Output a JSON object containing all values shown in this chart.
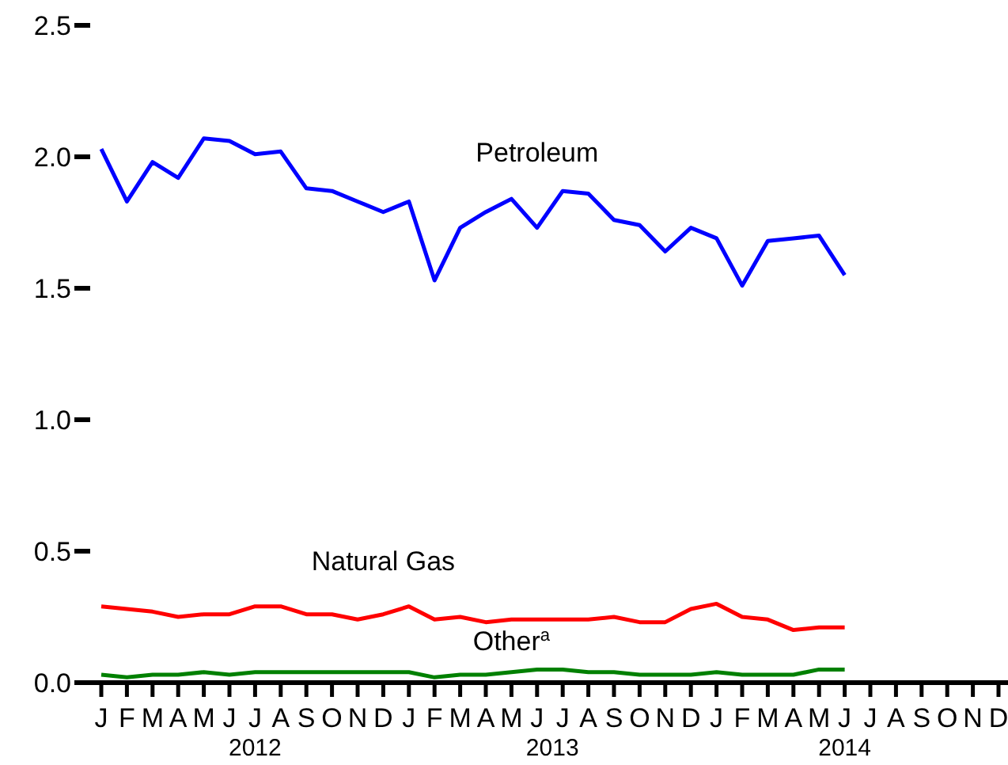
{
  "chart_data": {
    "type": "line",
    "categories": [
      "J",
      "F",
      "M",
      "A",
      "M",
      "J",
      "J",
      "A",
      "S",
      "O",
      "N",
      "D",
      "J",
      "F",
      "M",
      "A",
      "M",
      "J",
      "J",
      "A",
      "S",
      "O",
      "N",
      "D",
      "J",
      "F",
      "M",
      "A",
      "M",
      "J",
      "J",
      "A",
      "S",
      "O",
      "N",
      "D"
    ],
    "series": [
      {
        "name": "Petroleum",
        "color": "#0000ff",
        "values": [
          2.03,
          1.83,
          1.98,
          1.92,
          2.07,
          2.06,
          2.01,
          2.02,
          1.88,
          1.87,
          1.83,
          1.79,
          1.83,
          1.53,
          1.73,
          1.79,
          1.84,
          1.73,
          1.87,
          1.86,
          1.76,
          1.74,
          1.64,
          1.73,
          1.69,
          1.51,
          1.68,
          1.69,
          1.7,
          1.55,
          null,
          null,
          null,
          null,
          null,
          null
        ]
      },
      {
        "name": "Natural Gas",
        "color": "#ff0000",
        "values": [
          0.29,
          0.28,
          0.27,
          0.25,
          0.26,
          0.26,
          0.29,
          0.29,
          0.26,
          0.26,
          0.24,
          0.26,
          0.29,
          0.24,
          0.25,
          0.23,
          0.24,
          0.24,
          0.24,
          0.24,
          0.25,
          0.23,
          0.23,
          0.28,
          0.3,
          0.25,
          0.24,
          0.2,
          0.21,
          0.21,
          null,
          null,
          null,
          null,
          null,
          null
        ]
      },
      {
        "name": "Other$^{a}$",
        "color": "#008000",
        "values": [
          0.03,
          0.02,
          0.03,
          0.03,
          0.04,
          0.03,
          0.04,
          0.04,
          0.04,
          0.04,
          0.04,
          0.04,
          0.04,
          0.02,
          0.03,
          0.03,
          0.04,
          0.05,
          0.05,
          0.04,
          0.04,
          0.03,
          0.03,
          0.03,
          0.04,
          0.03,
          0.03,
          0.03,
          0.05,
          0.05,
          null,
          null,
          null,
          null,
          null,
          null
        ]
      }
    ],
    "ylim": [
      0,
      2.5
    ],
    "yticks": [
      {
        "value": 0,
        "label": "0.0"
      },
      0.5,
      {
        "value": 1,
        "label": "1.0"
      },
      1.5,
      {
        "value": 2,
        "label": "2.0"
      },
      2.5
    ],
    "annotations": [
      "2012",
      "2013",
      "2014"
    ],
    "grid": false,
    "legend": false,
    "marker": "none",
    "line_style": "solid"
  }
}
